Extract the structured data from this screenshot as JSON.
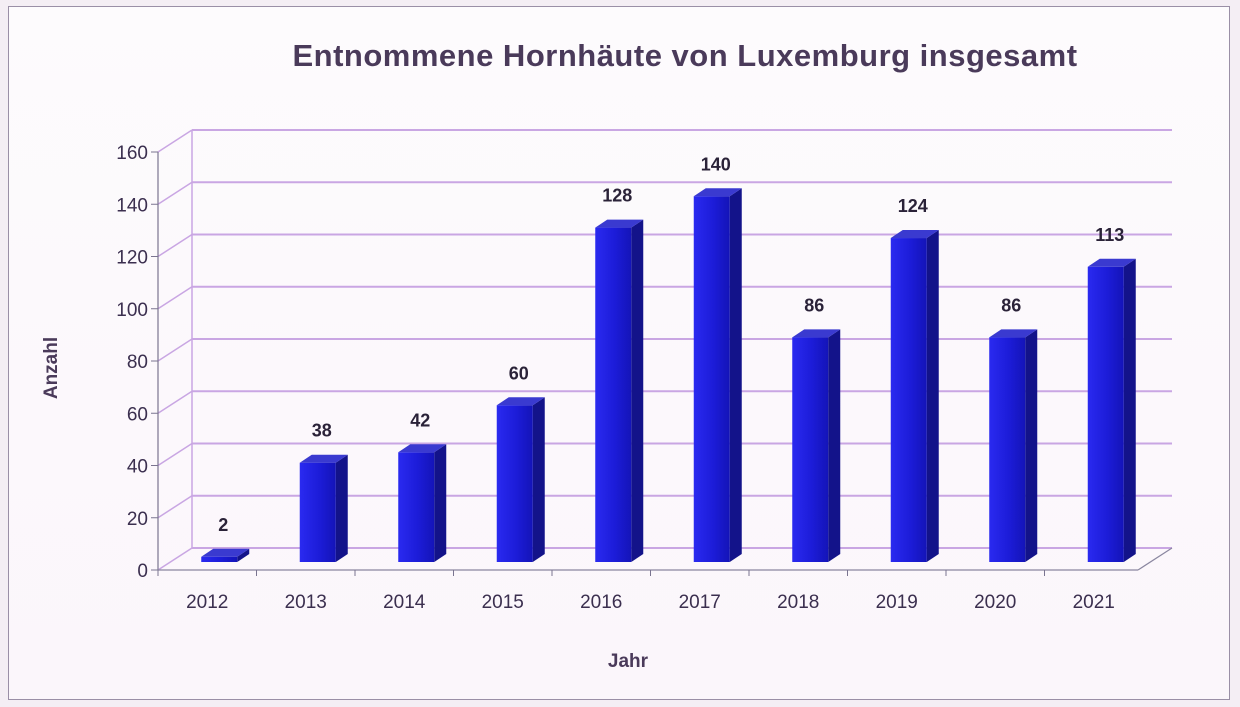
{
  "chart_data": {
    "type": "bar",
    "title": "Entnommene Hornhäute von Luxemburg insgesamt",
    "xlabel": "Jahr",
    "ylabel": "Anzahl",
    "categories": [
      "2012",
      "2013",
      "2014",
      "2015",
      "2016",
      "2017",
      "2018",
      "2019",
      "2020",
      "2021"
    ],
    "values": [
      2,
      38,
      42,
      60,
      128,
      140,
      86,
      124,
      86,
      113
    ],
    "ylim": [
      0,
      160
    ],
    "yticks": [
      0,
      20,
      40,
      60,
      80,
      100,
      120,
      140,
      160
    ],
    "grid": true,
    "legend": "none",
    "bar_color": "#1f1fdc",
    "gridline_color": "#c9a6e3"
  }
}
